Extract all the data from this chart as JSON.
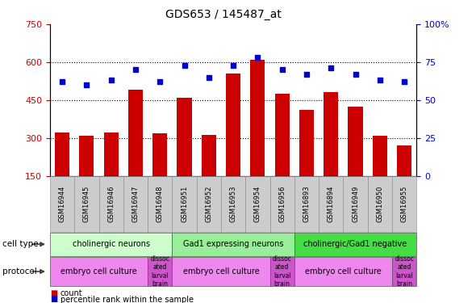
{
  "title": "GDS653 / 145487_at",
  "samples": [
    "GSM16944",
    "GSM16945",
    "GSM16946",
    "GSM16947",
    "GSM16948",
    "GSM16951",
    "GSM16952",
    "GSM16953",
    "GSM16954",
    "GSM16956",
    "GSM16893",
    "GSM16894",
    "GSM16949",
    "GSM16950",
    "GSM16955"
  ],
  "counts": [
    320,
    307,
    320,
    490,
    317,
    460,
    313,
    555,
    610,
    475,
    410,
    480,
    425,
    310,
    270
  ],
  "percentiles": [
    62,
    60,
    63,
    70,
    62,
    73,
    65,
    73,
    78,
    70,
    67,
    71,
    67,
    63,
    62
  ],
  "ylim_left": [
    150,
    750
  ],
  "ylim_right": [
    0,
    100
  ],
  "yticks_left": [
    150,
    300,
    450,
    600,
    750
  ],
  "yticks_right": [
    0,
    25,
    50,
    75,
    100
  ],
  "bar_color": "#cc0000",
  "dot_color": "#0000cc",
  "grid_color": "#000000",
  "cell_types": [
    {
      "label": "cholinergic neurons",
      "start": 0,
      "end": 5,
      "color": "#ccffcc"
    },
    {
      "label": "Gad1 expressing neurons",
      "start": 5,
      "end": 10,
      "color": "#99ee99"
    },
    {
      "label": "cholinergic/Gad1 negative",
      "start": 10,
      "end": 15,
      "color": "#44dd44"
    }
  ],
  "protocols": [
    {
      "label": "embryo cell culture",
      "start": 0,
      "end": 4,
      "color": "#ee88ee"
    },
    {
      "label": "dissoc\nated\nlarval\nbrain",
      "start": 4,
      "end": 5,
      "color": "#cc55cc"
    },
    {
      "label": "embryo cell culture",
      "start": 5,
      "end": 9,
      "color": "#ee88ee"
    },
    {
      "label": "dissoc\nated\nlarval\nbrain",
      "start": 9,
      "end": 10,
      "color": "#cc55cc"
    },
    {
      "label": "embryo cell culture",
      "start": 10,
      "end": 14,
      "color": "#ee88ee"
    },
    {
      "label": "dissoc\nated\nlarval\nbrain",
      "start": 14,
      "end": 15,
      "color": "#cc55cc"
    }
  ],
  "legend_count_color": "#cc0000",
  "legend_pct_color": "#0000cc",
  "tick_label_color_left": "#cc0000",
  "tick_label_color_right": "#0000cc",
  "bg_color": "#ffffff",
  "sample_box_color": "#cccccc",
  "sample_box_edge": "#888888"
}
